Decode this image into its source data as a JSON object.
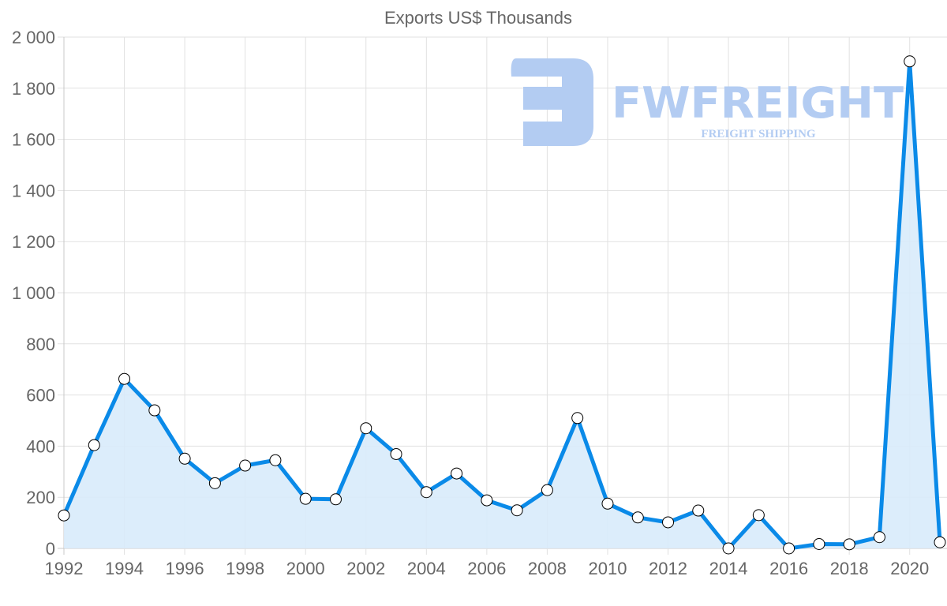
{
  "chart_data": {
    "type": "area",
    "title": "Exports US$ Thousands",
    "xlabel": "",
    "ylabel": "",
    "x": [
      1992,
      1993,
      1994,
      1995,
      1996,
      1997,
      1998,
      1999,
      2000,
      2001,
      2002,
      2003,
      2004,
      2005,
      2006,
      2007,
      2008,
      2009,
      2010,
      2011,
      2012,
      2013,
      2014,
      2015,
      2016,
      2017,
      2018,
      2019,
      2020,
      2021
    ],
    "series": [
      {
        "name": "Exports US$ Thousands",
        "values": [
          129,
          404,
          663,
          540,
          351,
          255,
          324,
          345,
          194,
          192,
          470,
          369,
          220,
          293,
          188,
          149,
          228,
          510,
          175,
          121,
          102,
          148,
          0,
          130,
          0,
          17,
          16,
          44,
          1905,
          24
        ]
      }
    ],
    "ylim": [
      0,
      2000
    ],
    "xlim": [
      1992,
      2021
    ],
    "y_ticks": [
      0,
      200,
      400,
      600,
      800,
      1000,
      1200,
      1400,
      1600,
      1800,
      2000
    ],
    "y_tick_labels": [
      "0",
      "200",
      "400",
      "600",
      "800",
      "1 000",
      "1 200",
      "1 400",
      "1 600",
      "1 800",
      "2 000"
    ],
    "x_ticks": [
      1992,
      1994,
      1996,
      1998,
      2000,
      2002,
      2004,
      2006,
      2008,
      2010,
      2012,
      2014,
      2016,
      2018,
      2020
    ],
    "x_tick_labels": [
      "1992",
      "1994",
      "1996",
      "1998",
      "2000",
      "2002",
      "2004",
      "2006",
      "2008",
      "2010",
      "2012",
      "2014",
      "2016",
      "2018",
      "2020"
    ],
    "grid": true,
    "legend": "none",
    "colors": {
      "line": "#0a8ae8",
      "fill": "#d8ebfb",
      "point_fill": "#ffffff",
      "point_stroke": "#000000"
    }
  },
  "watermark": {
    "brand": "FWFREIGHT",
    "tagline": "FREIGHT SHIPPING",
    "color": "#b3ccf2"
  }
}
